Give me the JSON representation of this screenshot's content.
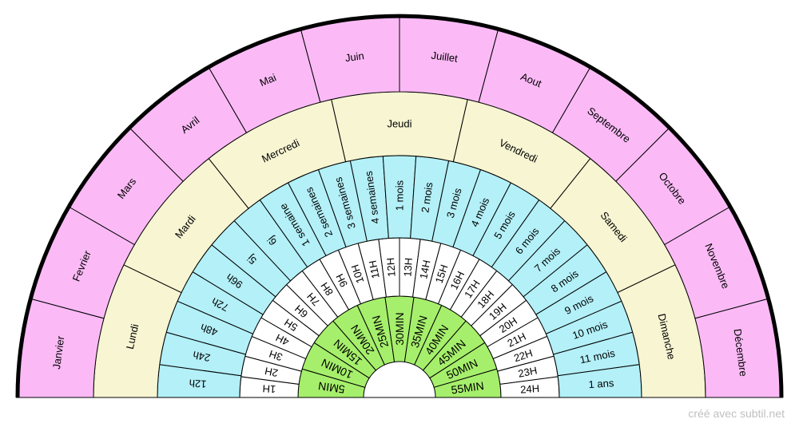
{
  "rings": [
    {
      "id": "minutes",
      "color": "#a6ef6c",
      "labels": [
        "5MIN",
        "10MIN",
        "15MIN",
        "20MIN",
        "25MIN",
        "30MIN",
        "35MIN",
        "40MIN",
        "45MIN",
        "50MIN",
        "55MIN"
      ]
    },
    {
      "id": "hours",
      "color": "#ffffff",
      "labels": [
        "1H",
        "2H",
        "3H",
        "4H",
        "5H",
        "6H",
        "7H",
        "8H",
        "9H",
        "10H",
        "11H",
        "12H",
        "13H",
        "14H",
        "15H",
        "16H",
        "17H",
        "18H",
        "19H",
        "20H",
        "21H",
        "22H",
        "23H",
        "24H"
      ]
    },
    {
      "id": "periods",
      "color": "#b3f0f8",
      "labels": [
        "12h",
        "24h",
        "48h",
        "72h",
        "96h",
        "5j",
        "6j",
        "1 semaine",
        "2 semaines",
        "3 semaines",
        "4 semaines",
        "1 mois",
        "2 mois",
        "3 mois",
        "4 mois",
        "5 mois",
        "6 mois",
        "7 mois",
        "8 mois",
        "9 mois",
        "10 mois",
        "11 mois",
        "1 ans"
      ]
    },
    {
      "id": "days",
      "color": "#f7f5d2",
      "labels": [
        "Lundi",
        "Mardi",
        "Mercredi",
        "Jeudi",
        "Vendredi",
        "Samedi",
        "Dimanche"
      ]
    },
    {
      "id": "months",
      "color": "#fbbaf6",
      "labels": [
        "Janvier",
        "Fevrier",
        "Mars",
        "Avril",
        "Mai",
        "Juin",
        "Juillet",
        "Aout",
        "Septembre",
        "Octobre",
        "Novembre",
        "Décembre"
      ]
    }
  ],
  "footer": {
    "credit": "créé avec subtil.net"
  }
}
